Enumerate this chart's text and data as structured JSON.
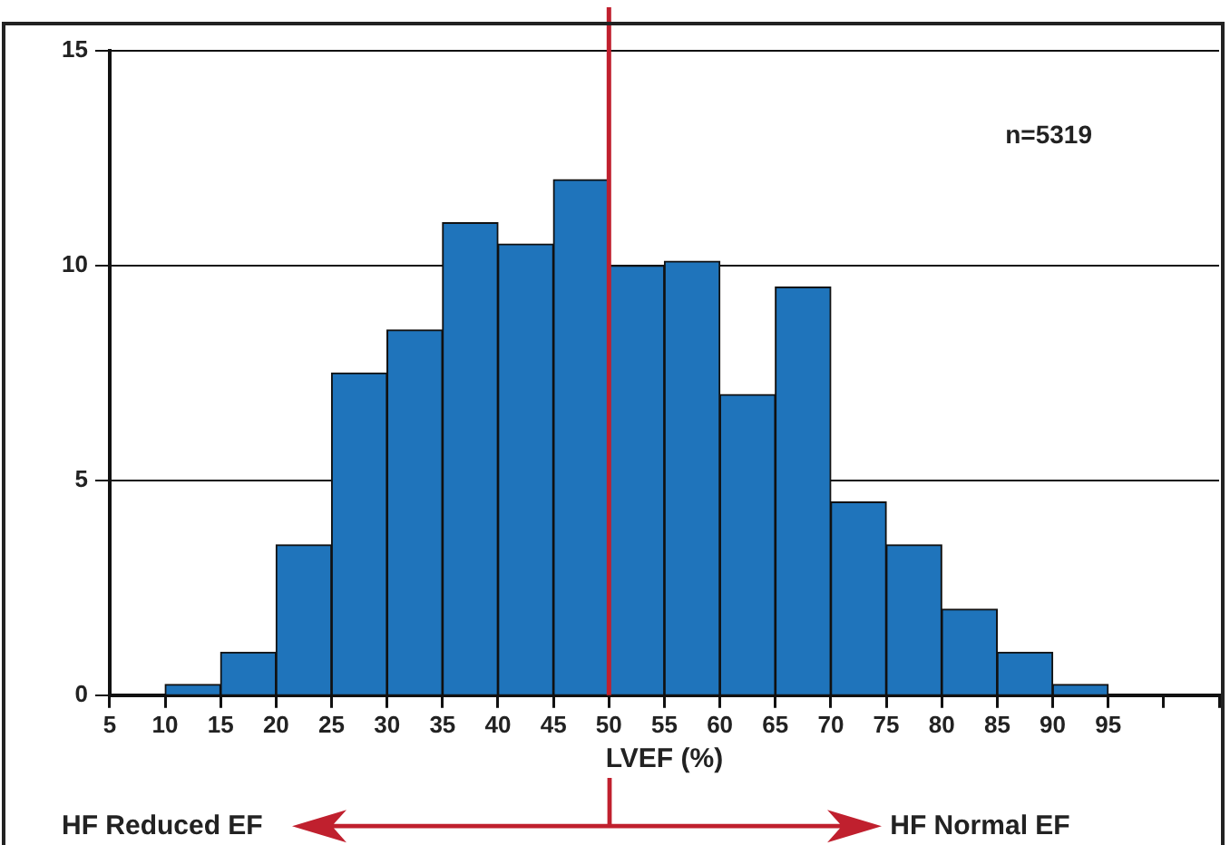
{
  "chart_data": {
    "type": "histogram",
    "xlabel": "LVEF (%)",
    "bins": [
      10,
      15,
      20,
      25,
      30,
      35,
      40,
      45,
      50,
      55,
      60,
      65,
      70,
      75,
      80,
      85,
      90,
      95
    ],
    "values": [
      0.25,
      1,
      3.5,
      7.5,
      8.5,
      11,
      10.5,
      12,
      10,
      10.1,
      7,
      9.5,
      4.5,
      3.5,
      2,
      1,
      0.25
    ],
    "color": "#1f74bb",
    "xlim": [
      5,
      105
    ],
    "xticks": [
      5,
      10,
      15,
      20,
      25,
      30,
      35,
      40,
      45,
      50,
      55,
      60,
      65,
      70,
      75,
      80,
      85,
      90,
      95,
      {
        "value": 100,
        "label": null
      },
      {
        "value": 105,
        "label": null
      }
    ],
    "ylim": [
      0,
      15
    ],
    "yticks": [
      0,
      5,
      10,
      15
    ],
    "grid": "y",
    "ref_lines": [
      {
        "axis": "x",
        "value": 50,
        "color": "#c0202e"
      }
    ],
    "annotations": [
      "n=5319",
      "HF Reduced EF",
      "HF Normal EF"
    ]
  }
}
